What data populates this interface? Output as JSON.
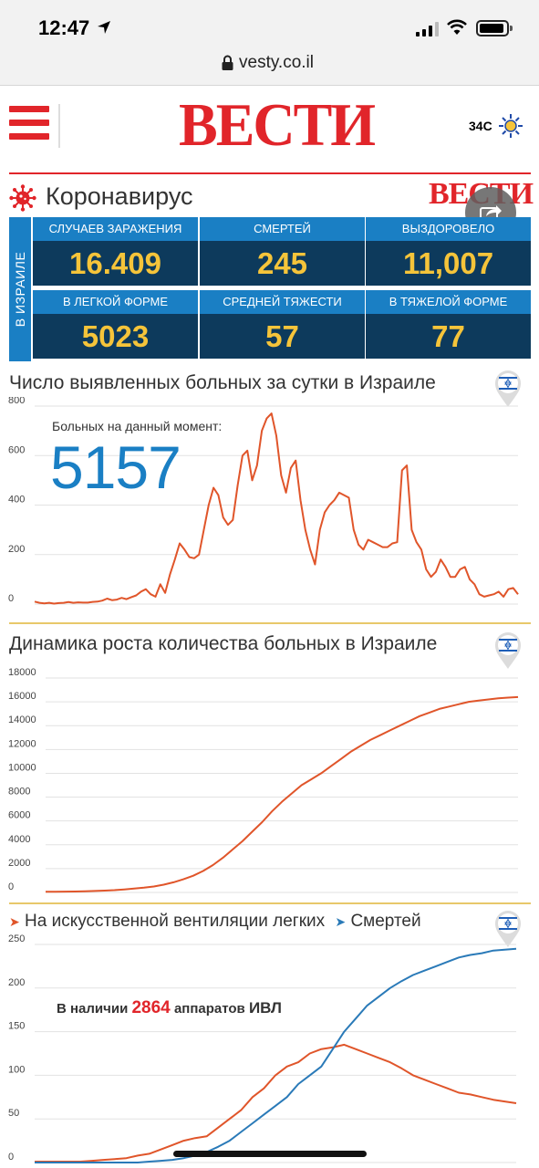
{
  "status_bar": {
    "time": "12:47"
  },
  "browser": {
    "url": "vesty.co.il"
  },
  "header": {
    "logo": "ВЕСТИ",
    "weather_temp": "34C"
  },
  "corona": {
    "title": "Коронавирус",
    "small_logo": "ВЕСТИ",
    "side_label": "В ИЗРАИЛЕ"
  },
  "stats": [
    {
      "label": "СЛУЧАЕВ ЗАРАЖЕНИЯ",
      "value": "16.409"
    },
    {
      "label": "СМЕРТЕЙ",
      "value": "245"
    },
    {
      "label": "ВЫЗДОРОВЕЛО",
      "value": "11,007"
    },
    {
      "label": "В ЛЕГКОЙ ФОРМЕ",
      "value": "5023"
    },
    {
      "label": "СРЕДНЕЙ ТЯЖЕСТИ",
      "value": "57"
    },
    {
      "label": "В ТЯЖЕЛОЙ ФОРМЕ",
      "value": "77"
    }
  ],
  "daily": {
    "title": "Число выявленных больных за сутки в Израиле",
    "current_label": "Больных на данный момент:",
    "current_value": "5157"
  },
  "growth": {
    "title": "Динамика роста количества больных в Израиле"
  },
  "vent": {
    "legend_vent": "На искусственной вентиляции легких",
    "legend_deaths": "Смертей",
    "available_prefix": "В наличии",
    "available_num": "2864",
    "available_mid": "аппаратов",
    "available_suffix": "ИВЛ"
  },
  "chart_data": [
    {
      "type": "line",
      "title": "Число выявленных больных за сутки в Израиле",
      "ylim": [
        0,
        800
      ],
      "yticks": [
        0,
        200,
        400,
        600,
        800
      ],
      "grid": true,
      "series": [
        {
          "color": "#e0552a",
          "values": [
            10,
            5,
            3,
            5,
            2,
            4,
            5,
            8,
            5,
            7,
            6,
            6,
            9,
            10,
            14,
            22,
            16,
            18,
            25,
            20,
            28,
            35,
            50,
            60,
            40,
            30,
            80,
            45,
            120,
            180,
            245,
            220,
            190,
            185,
            200,
            300,
            400,
            470,
            440,
            350,
            320,
            340,
            480,
            600,
            620,
            500,
            560,
            700,
            750,
            770,
            680,
            520,
            450,
            550,
            580,
            420,
            300,
            220,
            160,
            300,
            370,
            400,
            420,
            450,
            440,
            430,
            300,
            240,
            220,
            260,
            250,
            240,
            230,
            230,
            245,
            250,
            540,
            560,
            300,
            250,
            220,
            140,
            110,
            130,
            180,
            150,
            110,
            110,
            140,
            150,
            100,
            80,
            40,
            30,
            35,
            40,
            50,
            30,
            60,
            65,
            40
          ]
        }
      ]
    },
    {
      "type": "line",
      "title": "Динамика роста количества больных в Израиле",
      "ylim": [
        0,
        18000
      ],
      "yticks": [
        0,
        2000,
        4000,
        6000,
        8000,
        10000,
        12000,
        14000,
        16000,
        18000
      ],
      "grid": true,
      "series": [
        {
          "color": "#e0552a",
          "values": [
            50,
            60,
            70,
            80,
            100,
            120,
            150,
            190,
            250,
            320,
            400,
            500,
            650,
            850,
            1100,
            1400,
            1800,
            2300,
            2900,
            3600,
            4300,
            5100,
            5900,
            6800,
            7600,
            8300,
            9000,
            9500,
            10000,
            10600,
            11200,
            11800,
            12300,
            12800,
            13200,
            13600,
            14000,
            14400,
            14800,
            15100,
            15400,
            15600,
            15800,
            16000,
            16100,
            16200,
            16300,
            16350,
            16400
          ]
        }
      ]
    },
    {
      "type": "line",
      "ylim": [
        0,
        250
      ],
      "yticks": [
        0,
        50,
        100,
        150,
        200,
        250
      ],
      "grid": true,
      "series": [
        {
          "name": "На искусственной вентиляции легких",
          "color": "#e0552a",
          "values": [
            1,
            1,
            1,
            1,
            1,
            2,
            3,
            4,
            5,
            8,
            10,
            15,
            20,
            25,
            28,
            30,
            40,
            50,
            60,
            75,
            85,
            100,
            110,
            115,
            125,
            130,
            132,
            135,
            130,
            125,
            120,
            115,
            108,
            100,
            95,
            90,
            85,
            80,
            78,
            75,
            72,
            70,
            68
          ]
        },
        {
          "name": "Смертей",
          "color": "#2a7ab8",
          "values": [
            0,
            0,
            0,
            0,
            0,
            0,
            0,
            0,
            0,
            0,
            1,
            2,
            3,
            5,
            8,
            12,
            18,
            25,
            35,
            45,
            55,
            65,
            75,
            90,
            100,
            110,
            130,
            150,
            165,
            180,
            190,
            200,
            208,
            215,
            220,
            225,
            230,
            235,
            238,
            240,
            243,
            244,
            245
          ]
        }
      ]
    }
  ]
}
